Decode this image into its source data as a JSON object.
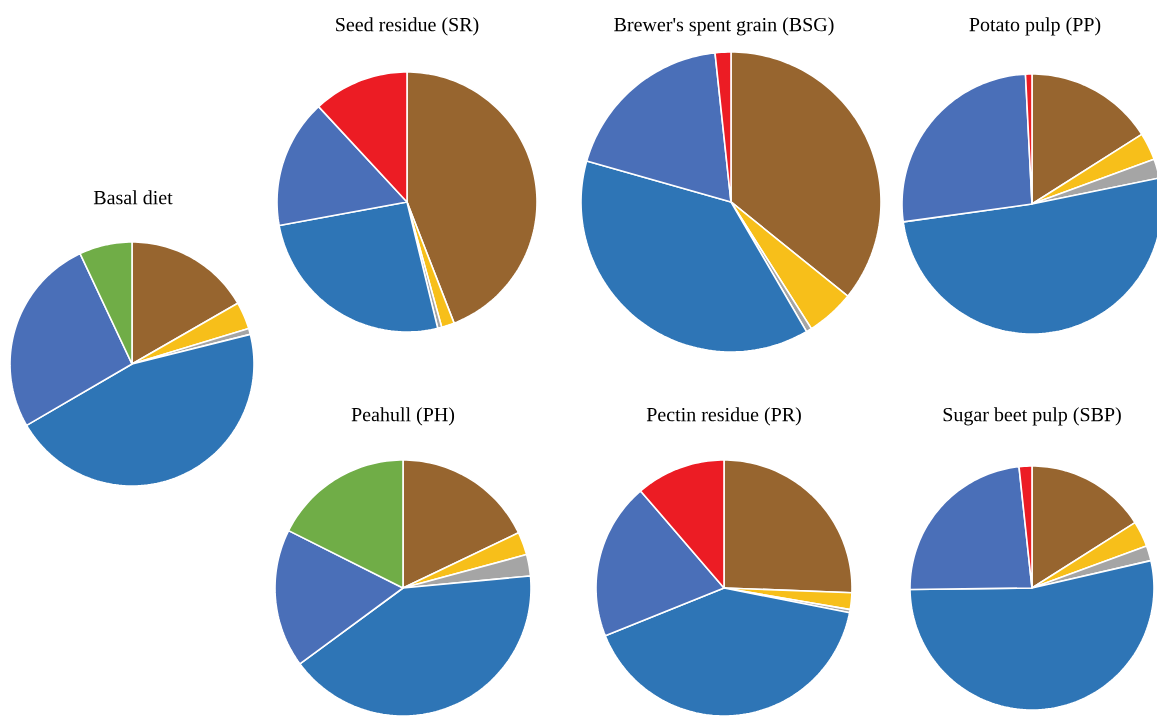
{
  "chart_data": [
    {
      "type": "pie",
      "title": "Basal diet",
      "categories": [
        null,
        null,
        null,
        null,
        null,
        null
      ],
      "values": [
        16.7,
        3.6,
        0.8,
        45.5,
        26.4,
        7.0
      ],
      "colors": [
        "#97652f",
        "#f7bf1a",
        "#a5a5a5",
        "#2e75b6",
        "#4a6fb8",
        "#70ad47"
      ]
    },
    {
      "type": "pie",
      "title": "Seed residue (SR)",
      "categories": [
        null,
        null,
        null,
        null,
        null,
        null
      ],
      "values": [
        44.1,
        1.6,
        0.5,
        25.9,
        16.0,
        11.9
      ],
      "colors": [
        "#97652f",
        "#f7bf1a",
        "#a5a5a5",
        "#2e75b6",
        "#4a6fb8",
        "#ec1c24"
      ]
    },
    {
      "type": "pie",
      "title": "Brewer's spent grain (BSG)",
      "categories": [
        null,
        null,
        null,
        null,
        null,
        null
      ],
      "values": [
        35.8,
        5.2,
        0.6,
        37.8,
        18.9,
        1.7
      ],
      "colors": [
        "#97652f",
        "#f7bf1a",
        "#a5a5a5",
        "#2e75b6",
        "#4a6fb8",
        "#ec1c24"
      ]
    },
    {
      "type": "pie",
      "title": "Potato pulp (PP)",
      "categories": [
        null,
        null,
        null,
        null,
        null,
        null
      ],
      "values": [
        16.0,
        3.4,
        2.4,
        51.0,
        26.4,
        0.8
      ],
      "colors": [
        "#97652f",
        "#f7bf1a",
        "#a5a5a5",
        "#2e75b6",
        "#4a6fb8",
        "#ec1c24"
      ]
    },
    {
      "type": "pie",
      "title": "Peahull (PH)",
      "categories": [
        null,
        null,
        null,
        null,
        null,
        null
      ],
      "values": [
        17.9,
        2.9,
        2.7,
        41.4,
        17.5,
        17.6
      ],
      "colors": [
        "#97652f",
        "#f7bf1a",
        "#a5a5a5",
        "#2e75b6",
        "#4a6fb8",
        "#70ad47"
      ]
    },
    {
      "type": "pie",
      "title": "Pectin residue (PR)",
      "categories": [
        null,
        null,
        null,
        null,
        null,
        null
      ],
      "values": [
        25.6,
        2.1,
        0.4,
        40.8,
        19.8,
        11.3
      ],
      "colors": [
        "#97652f",
        "#f7bf1a",
        "#a5a5a5",
        "#2e75b6",
        "#4a6fb8",
        "#ec1c24"
      ]
    },
    {
      "type": "pie",
      "title": "Sugar beet pulp (SBP)",
      "categories": [
        null,
        null,
        null,
        null,
        null,
        null
      ],
      "values": [
        16.0,
        3.4,
        2.0,
        53.4,
        23.5,
        1.7
      ],
      "colors": [
        "#97652f",
        "#f7bf1a",
        "#a5a5a5",
        "#2e75b6",
        "#4a6fb8",
        "#ec1c24"
      ]
    }
  ]
}
